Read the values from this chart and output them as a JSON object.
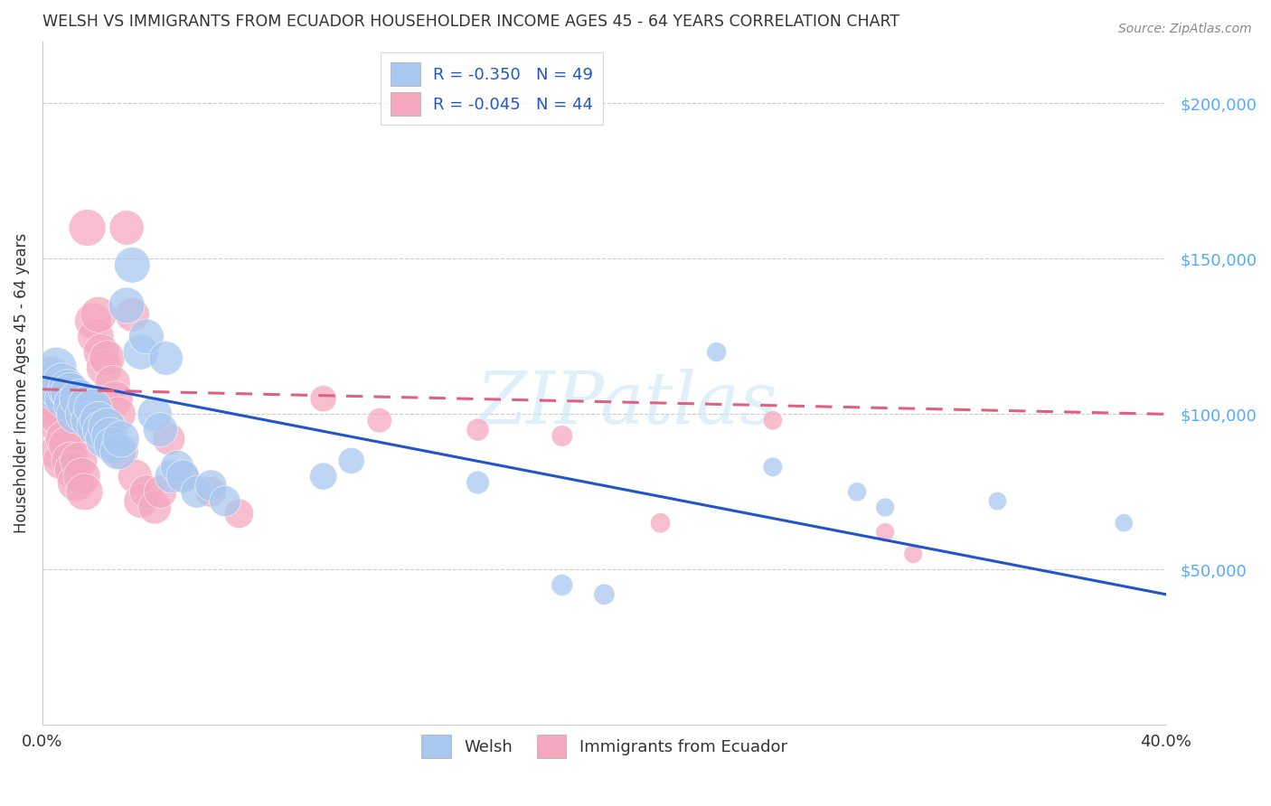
{
  "title": "WELSH VS IMMIGRANTS FROM ECUADOR HOUSEHOLDER INCOME AGES 45 - 64 YEARS CORRELATION CHART",
  "source": "Source: ZipAtlas.com",
  "ylabel": "Householder Income Ages 45 - 64 years",
  "ytick_labels": [
    "$50,000",
    "$100,000",
    "$150,000",
    "$200,000"
  ],
  "ytick_values": [
    50000,
    100000,
    150000,
    200000
  ],
  "ymin": 0,
  "ymax": 220000,
  "xmin": 0.0,
  "xmax": 0.4,
  "welsh_color": "#a8c8f0",
  "ecuador_color": "#f4a8c0",
  "welsh_line_color": "#2255cc",
  "ecuador_line_color": "#e06080",
  "ytick_color": "#55aaff",
  "xtick_color": "#333333",
  "watermark": "ZIPatlas",
  "legend_label1": "Welsh",
  "legend_label2": "Immigrants from Ecuador",
  "welsh_r": -0.35,
  "welsh_n": 49,
  "ecuador_r": -0.045,
  "ecuador_n": 44,
  "welsh_line_intercept": 112000,
  "welsh_line_slope": -175000,
  "ecuador_line_intercept": 108000,
  "ecuador_line_slope": -20000,
  "welsh_scatter": [
    [
      0.002,
      110000
    ],
    [
      0.003,
      112000
    ],
    [
      0.004,
      108000
    ],
    [
      0.005,
      115000
    ],
    [
      0.006,
      108000
    ],
    [
      0.007,
      110000
    ],
    [
      0.008,
      105000
    ],
    [
      0.009,
      108000
    ],
    [
      0.01,
      107000
    ],
    [
      0.011,
      103000
    ],
    [
      0.012,
      100000
    ],
    [
      0.013,
      105000
    ],
    [
      0.015,
      100000
    ],
    [
      0.016,
      103000
    ],
    [
      0.017,
      98000
    ],
    [
      0.018,
      102000
    ],
    [
      0.019,
      96000
    ],
    [
      0.02,
      98000
    ],
    [
      0.021,
      95000
    ],
    [
      0.022,
      92000
    ],
    [
      0.023,
      96000
    ],
    [
      0.024,
      93000
    ],
    [
      0.025,
      90000
    ],
    [
      0.027,
      88000
    ],
    [
      0.028,
      92000
    ],
    [
      0.03,
      135000
    ],
    [
      0.032,
      148000
    ],
    [
      0.035,
      120000
    ],
    [
      0.037,
      125000
    ],
    [
      0.04,
      100000
    ],
    [
      0.042,
      95000
    ],
    [
      0.044,
      118000
    ],
    [
      0.046,
      80000
    ],
    [
      0.048,
      83000
    ],
    [
      0.05,
      80000
    ],
    [
      0.055,
      75000
    ],
    [
      0.06,
      77000
    ],
    [
      0.065,
      72000
    ],
    [
      0.1,
      80000
    ],
    [
      0.11,
      85000
    ],
    [
      0.155,
      78000
    ],
    [
      0.185,
      45000
    ],
    [
      0.2,
      42000
    ],
    [
      0.24,
      120000
    ],
    [
      0.26,
      83000
    ],
    [
      0.29,
      75000
    ],
    [
      0.3,
      70000
    ],
    [
      0.34,
      72000
    ],
    [
      0.385,
      65000
    ]
  ],
  "ecuador_scatter": [
    [
      0.002,
      108000
    ],
    [
      0.003,
      103000
    ],
    [
      0.004,
      98000
    ],
    [
      0.005,
      100000
    ],
    [
      0.006,
      88000
    ],
    [
      0.007,
      85000
    ],
    [
      0.008,
      92000
    ],
    [
      0.009,
      90000
    ],
    [
      0.01,
      85000
    ],
    [
      0.011,
      82000
    ],
    [
      0.012,
      78000
    ],
    [
      0.013,
      85000
    ],
    [
      0.014,
      80000
    ],
    [
      0.015,
      75000
    ],
    [
      0.016,
      160000
    ],
    [
      0.018,
      130000
    ],
    [
      0.019,
      125000
    ],
    [
      0.02,
      132000
    ],
    [
      0.021,
      120000
    ],
    [
      0.022,
      115000
    ],
    [
      0.023,
      118000
    ],
    [
      0.025,
      110000
    ],
    [
      0.026,
      105000
    ],
    [
      0.027,
      100000
    ],
    [
      0.028,
      88000
    ],
    [
      0.03,
      160000
    ],
    [
      0.032,
      132000
    ],
    [
      0.033,
      80000
    ],
    [
      0.035,
      72000
    ],
    [
      0.037,
      75000
    ],
    [
      0.04,
      70000
    ],
    [
      0.042,
      75000
    ],
    [
      0.045,
      92000
    ],
    [
      0.05,
      80000
    ],
    [
      0.06,
      75000
    ],
    [
      0.07,
      68000
    ],
    [
      0.1,
      105000
    ],
    [
      0.12,
      98000
    ],
    [
      0.155,
      95000
    ],
    [
      0.185,
      93000
    ],
    [
      0.22,
      65000
    ],
    [
      0.26,
      98000
    ],
    [
      0.3,
      62000
    ],
    [
      0.31,
      55000
    ]
  ],
  "welsh_big_points": [
    [
      0.001,
      108000,
      800
    ],
    [
      0.002,
      105000,
      500
    ]
  ],
  "ecuador_big_points": [
    [
      0.001,
      100000,
      600
    ]
  ]
}
